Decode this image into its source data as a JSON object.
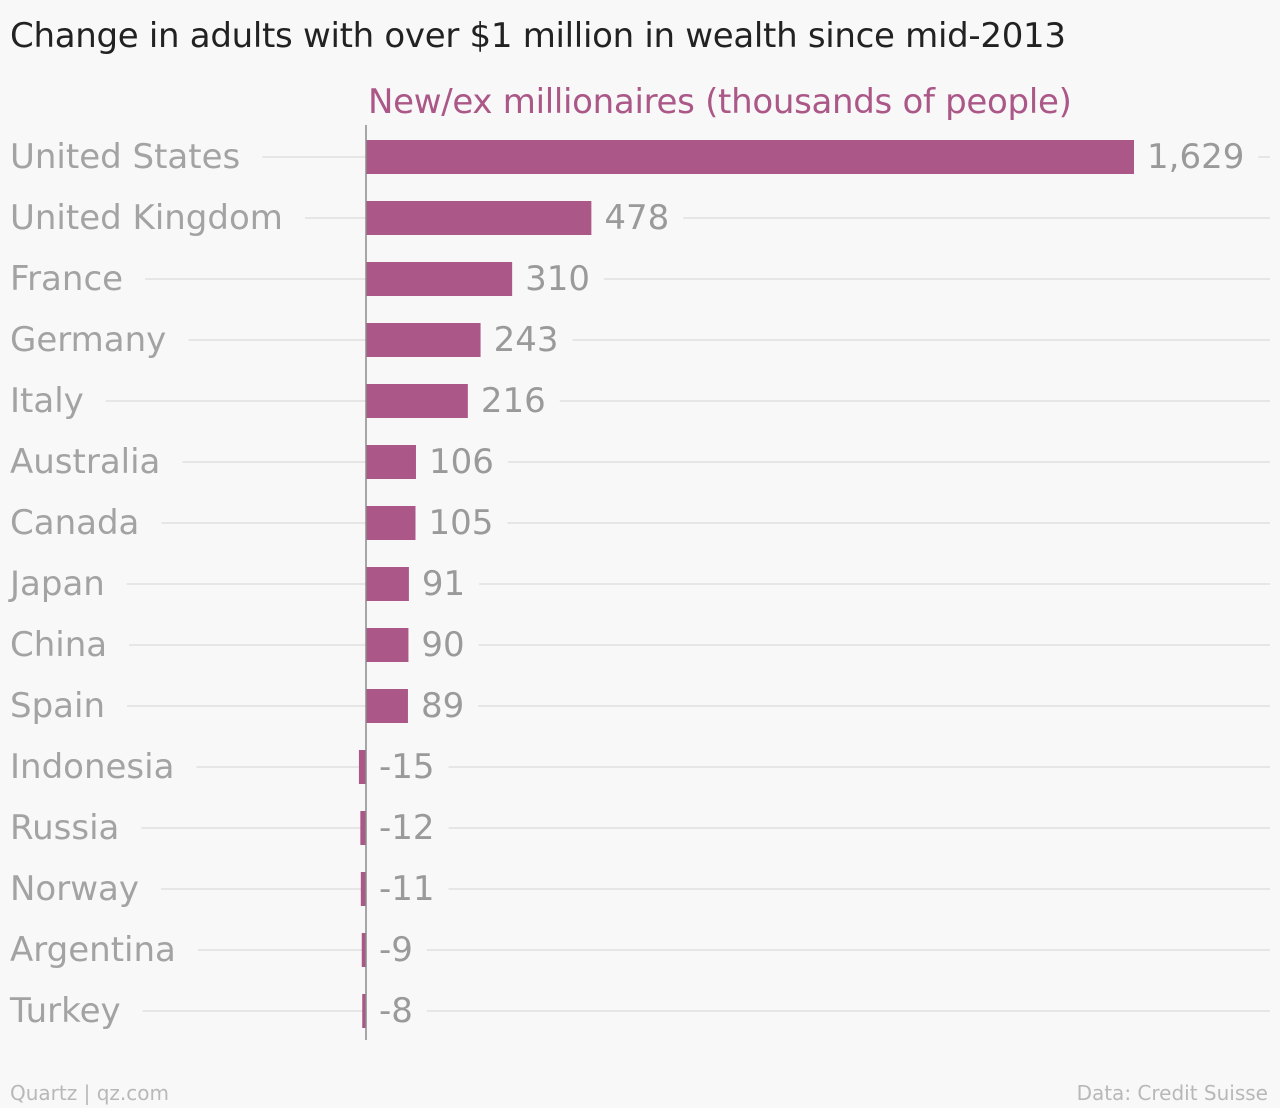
{
  "title": "Change in adults with over $1 million in wealth since mid-2013",
  "footer": {
    "source_left": "Quartz | qz.com",
    "source_right": "Data: Credit Suisse"
  },
  "colors": {
    "bar": "#ab5787",
    "series_title": "#ab5787",
    "category_label": "#a3a3a3",
    "value_label": "#9a9a9a",
    "gridline": "#e6e6e6",
    "axis": "#8a8a8a"
  },
  "chart_data": {
    "type": "bar",
    "orientation": "horizontal",
    "title": "Change in adults with over $1 million in wealth since mid-2013",
    "categories": [
      "United States",
      "United Kingdom",
      "France",
      "Germany",
      "Italy",
      "Australia",
      "Canada",
      "Japan",
      "China",
      "Spain",
      "Indonesia",
      "Russia",
      "Norway",
      "Argentina",
      "Turkey"
    ],
    "series": [
      {
        "name": "New/ex millionaires (thousands of people)",
        "values": [
          1629,
          478,
          310,
          243,
          216,
          106,
          105,
          91,
          90,
          89,
          -15,
          -12,
          -11,
          -9,
          -8
        ]
      }
    ],
    "value_labels": [
      "1,629",
      "478",
      "310",
      "243",
      "216",
      "106",
      "105",
      "91",
      "90",
      "89",
      "-15",
      "-12",
      "-11",
      "-9",
      "-8"
    ],
    "xlim": [
      -15,
      1629
    ],
    "grid": true,
    "legend": "top"
  }
}
